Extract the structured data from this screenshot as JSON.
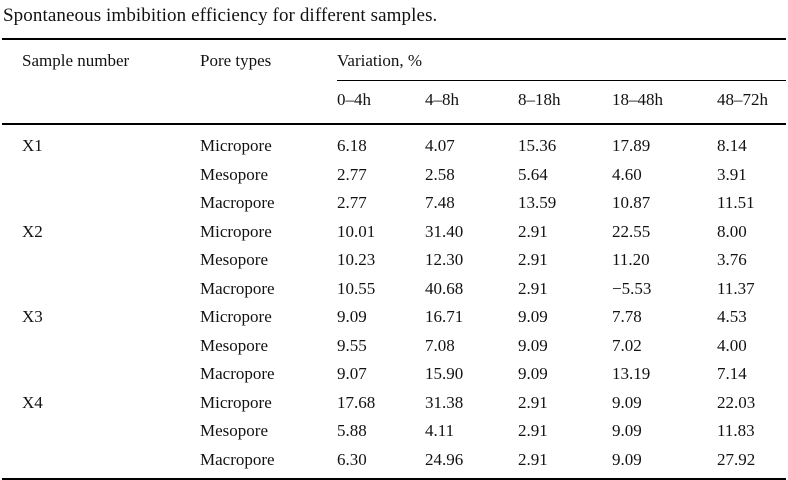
{
  "page": {
    "background": "#ffffff",
    "text_color": "#121212",
    "rule_color": "#000000"
  },
  "caption": "Spontaneous imbibition efficiency for different samples.",
  "table": {
    "headers": {
      "sample": "Sample number",
      "pore": "Pore types",
      "variation": "Variation, %"
    },
    "time_headers": [
      "0–4h",
      "4–8h",
      "8–18h",
      "18–48h",
      "48–72h"
    ],
    "groups": [
      {
        "sample": "X1",
        "rows": [
          {
            "pore": "Micropore",
            "values": [
              "6.18",
              "4.07",
              "15.36",
              "17.89",
              "8.14"
            ]
          },
          {
            "pore": "Mesopore",
            "values": [
              "2.77",
              "2.58",
              "5.64",
              "4.60",
              "3.91"
            ]
          },
          {
            "pore": "Macropore",
            "values": [
              "2.77",
              "7.48",
              "13.59",
              "10.87",
              "11.51"
            ]
          }
        ]
      },
      {
        "sample": "X2",
        "rows": [
          {
            "pore": "Micropore",
            "values": [
              "10.01",
              "31.40",
              "2.91",
              "22.55",
              "8.00"
            ]
          },
          {
            "pore": "Mesopore",
            "values": [
              "10.23",
              "12.30",
              "2.91",
              "11.20",
              "3.76"
            ]
          },
          {
            "pore": "Macropore",
            "values": [
              "10.55",
              "40.68",
              "2.91",
              "−5.53",
              "11.37"
            ]
          }
        ]
      },
      {
        "sample": "X3",
        "rows": [
          {
            "pore": "Micropore",
            "values": [
              "9.09",
              "16.71",
              "9.09",
              "7.78",
              "4.53"
            ]
          },
          {
            "pore": "Mesopore",
            "values": [
              "9.55",
              "7.08",
              "9.09",
              "7.02",
              "4.00"
            ]
          },
          {
            "pore": "Macropore",
            "values": [
              "9.07",
              "15.90",
              "9.09",
              "13.19",
              "7.14"
            ]
          }
        ]
      },
      {
        "sample": "X4",
        "rows": [
          {
            "pore": "Micropore",
            "values": [
              "17.68",
              "31.38",
              "2.91",
              "9.09",
              "22.03"
            ]
          },
          {
            "pore": "Mesopore",
            "values": [
              "5.88",
              "4.11",
              "2.91",
              "9.09",
              "11.83"
            ]
          },
          {
            "pore": "Macropore",
            "values": [
              "6.30",
              "24.96",
              "2.91",
              "9.09",
              "27.92"
            ]
          }
        ]
      }
    ]
  }
}
